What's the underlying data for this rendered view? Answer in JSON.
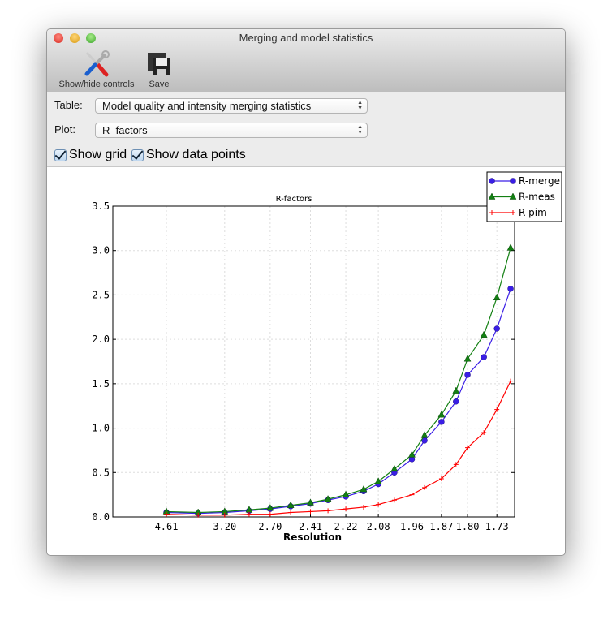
{
  "window": {
    "title": "Merging and model statistics"
  },
  "toolbar": {
    "show_hide_label": "Show/hide controls",
    "save_label": "Save"
  },
  "controls": {
    "table_label": "Table:",
    "table_value": "Model quality and intensity merging statistics",
    "plot_label": "Plot:",
    "plot_value": "R–factors",
    "show_grid_label": "Show grid",
    "show_grid_checked": true,
    "show_points_label": "Show data points",
    "show_points_checked": true
  },
  "chart_data": {
    "type": "line",
    "title": "R-factors",
    "xlabel": "Resolution",
    "ylabel": "",
    "x_scale": "1/d^2",
    "grid": true,
    "legend_placement": "top-right",
    "x": [
      4.61,
      3.66,
      3.2,
      2.9,
      2.7,
      2.54,
      2.41,
      2.31,
      2.22,
      2.14,
      2.08,
      2.02,
      1.96,
      1.92,
      1.87,
      1.83,
      1.8,
      1.76,
      1.73,
      1.7
    ],
    "xticks": [
      "4.61",
      "3.20",
      "2.70",
      "2.41",
      "2.22",
      "2.08",
      "1.96",
      "1.87",
      "1.80",
      "1.73"
    ],
    "yticks": [
      "0.0",
      "0.5",
      "1.0",
      "1.5",
      "2.0",
      "2.5",
      "3.0",
      "3.5"
    ],
    "ylim": [
      0,
      3.5
    ],
    "series": [
      {
        "name": "R-merge",
        "color": "#3a1ee6",
        "marker": "circle",
        "values": [
          0.05,
          0.04,
          0.05,
          0.07,
          0.09,
          0.12,
          0.15,
          0.19,
          0.23,
          0.29,
          0.37,
          0.5,
          0.65,
          0.86,
          1.07,
          1.3,
          1.6,
          1.8,
          2.12,
          2.57
        ]
      },
      {
        "name": "R-meas",
        "color": "#138013",
        "marker": "triangle",
        "values": [
          0.06,
          0.05,
          0.06,
          0.08,
          0.1,
          0.13,
          0.16,
          0.2,
          0.25,
          0.31,
          0.4,
          0.54,
          0.7,
          0.92,
          1.15,
          1.42,
          1.78,
          2.05,
          2.47,
          3.03
        ]
      },
      {
        "name": "R-pim",
        "color": "#ff0000",
        "marker": "plus",
        "values": [
          0.03,
          0.02,
          0.02,
          0.03,
          0.03,
          0.05,
          0.06,
          0.07,
          0.09,
          0.11,
          0.14,
          0.19,
          0.25,
          0.33,
          0.43,
          0.59,
          0.78,
          0.95,
          1.21,
          1.53
        ]
      }
    ]
  }
}
